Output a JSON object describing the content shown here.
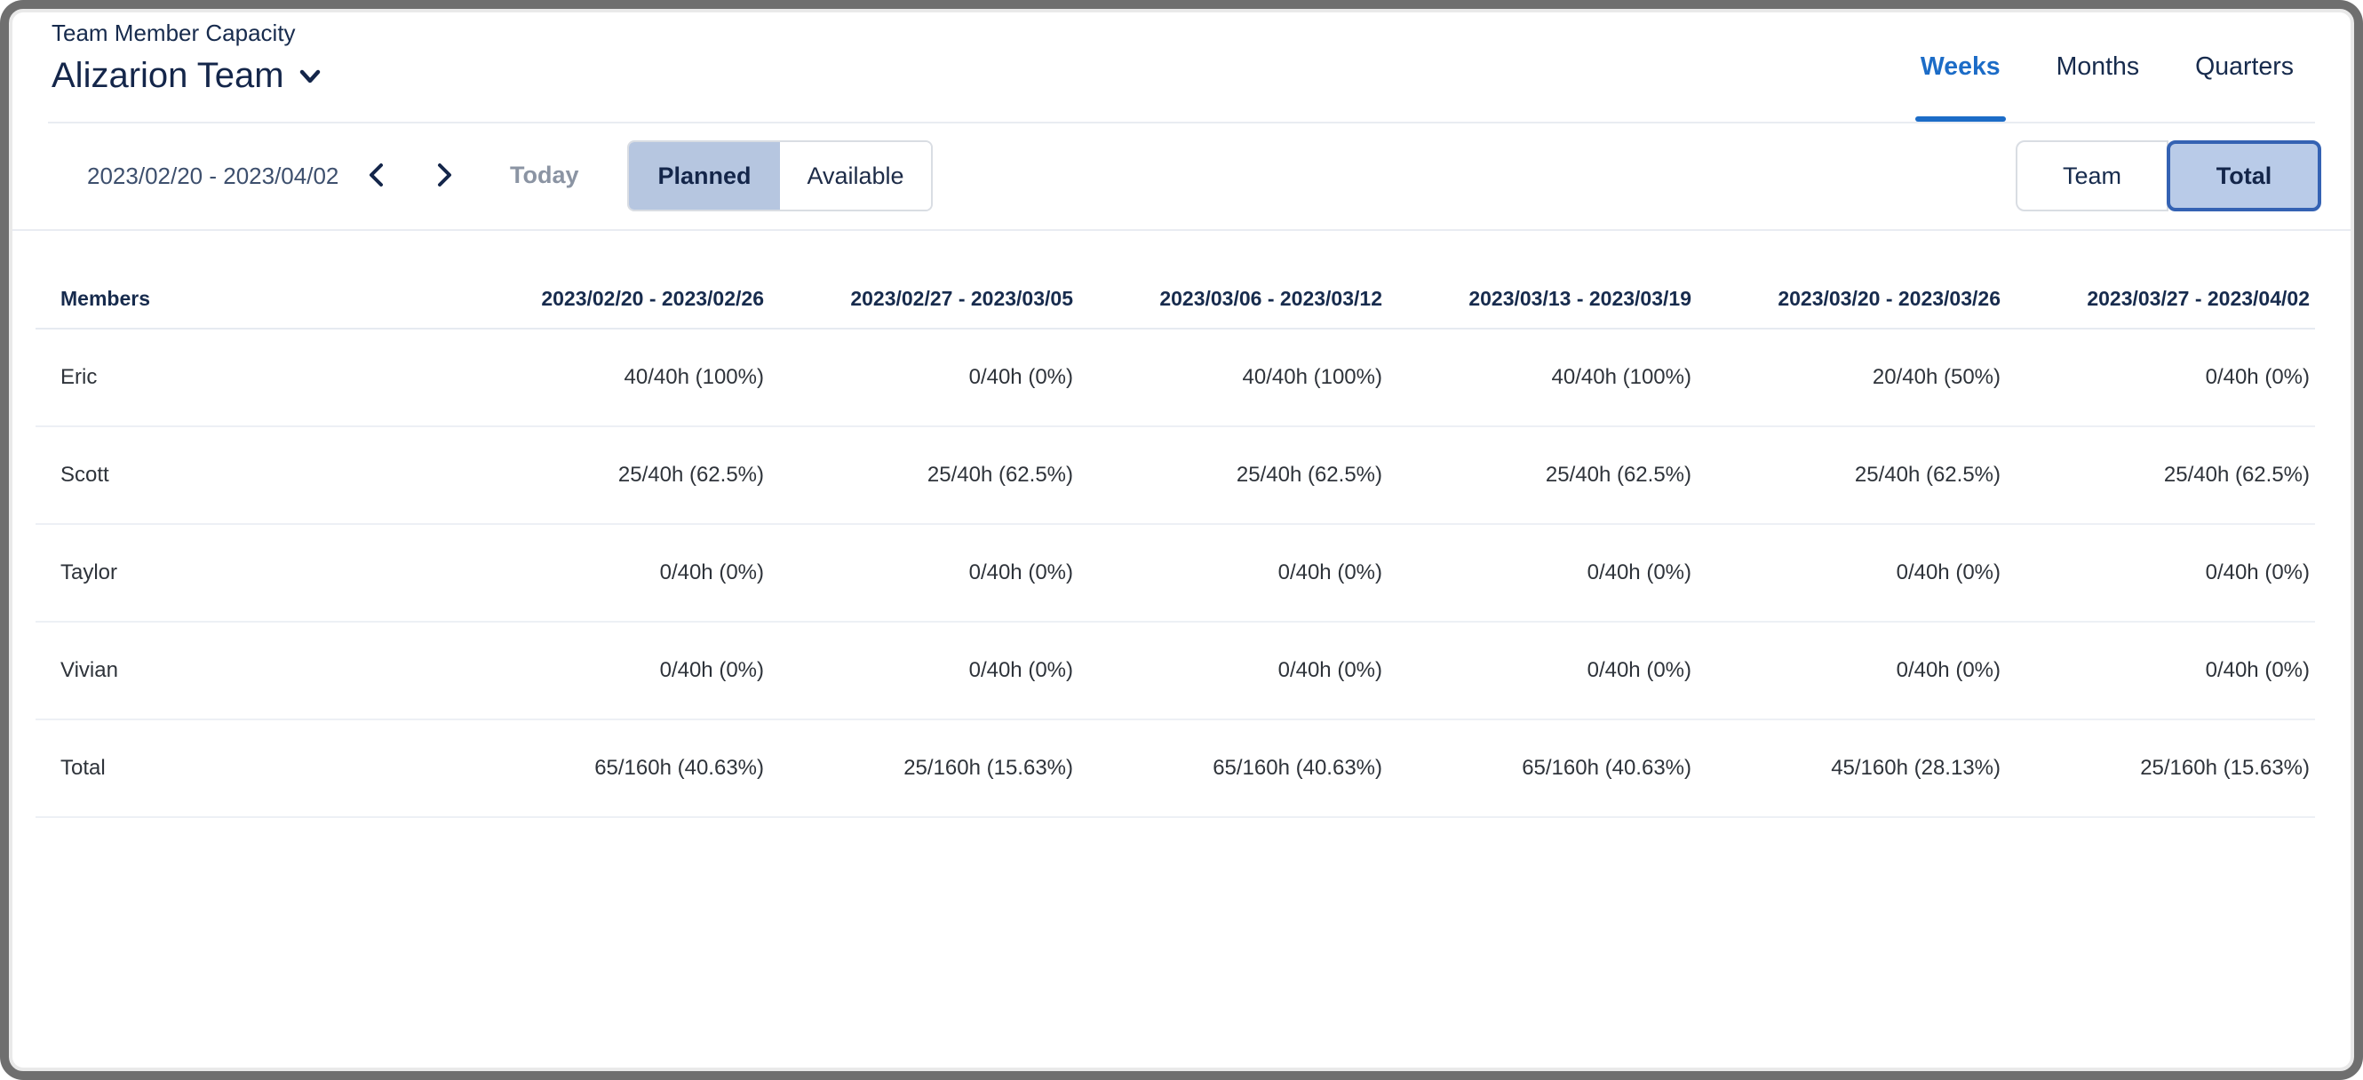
{
  "header": {
    "subtitle": "Team Member Capacity",
    "team_name": "Alizarion Team",
    "tabs": [
      {
        "label": "Weeks",
        "active": true
      },
      {
        "label": "Months",
        "active": false
      },
      {
        "label": "Quarters",
        "active": false
      }
    ]
  },
  "toolbar": {
    "date_range": "2023/02/20 - 2023/04/02",
    "today_label": "Today",
    "view_toggle": [
      {
        "label": "Planned",
        "selected": true
      },
      {
        "label": "Available",
        "selected": false
      }
    ],
    "scope_toggle": [
      {
        "label": "Team",
        "selected": false
      },
      {
        "label": "Total",
        "selected": true
      }
    ]
  },
  "table": {
    "first_column_header": "Members",
    "week_columns": [
      "2023/02/20 - 2023/02/26",
      "2023/02/27 - 2023/03/05",
      "2023/03/06 - 2023/03/12",
      "2023/03/13 - 2023/03/19",
      "2023/03/20 - 2023/03/26",
      "2023/03/27 - 2023/04/02"
    ],
    "rows": [
      {
        "name": "Eric",
        "values": [
          "40/40h (100%)",
          "0/40h (0%)",
          "40/40h (100%)",
          "40/40h (100%)",
          "20/40h (50%)",
          "0/40h (0%)"
        ]
      },
      {
        "name": "Scott",
        "values": [
          "25/40h (62.5%)",
          "25/40h (62.5%)",
          "25/40h (62.5%)",
          "25/40h (62.5%)",
          "25/40h (62.5%)",
          "25/40h (62.5%)"
        ]
      },
      {
        "name": "Taylor",
        "values": [
          "0/40h (0%)",
          "0/40h (0%)",
          "0/40h (0%)",
          "0/40h (0%)",
          "0/40h (0%)",
          "0/40h (0%)"
        ]
      },
      {
        "name": "Vivian",
        "values": [
          "0/40h (0%)",
          "0/40h (0%)",
          "0/40h (0%)",
          "0/40h (0%)",
          "0/40h (0%)",
          "0/40h (0%)"
        ]
      },
      {
        "name": "Total",
        "values": [
          "65/160h (40.63%)",
          "25/160h (15.63%)",
          "65/160h (40.63%)",
          "65/160h (40.63%)",
          "45/160h (28.13%)",
          "25/160h (15.63%)"
        ]
      }
    ]
  },
  "colors": {
    "accent_blue": "#1c6cc7",
    "segment_selected_bg": "#b6c6e0",
    "total_selected_bg": "#b9cbe8",
    "total_selected_border": "#3462b3",
    "navy_text": "#172B4D"
  }
}
